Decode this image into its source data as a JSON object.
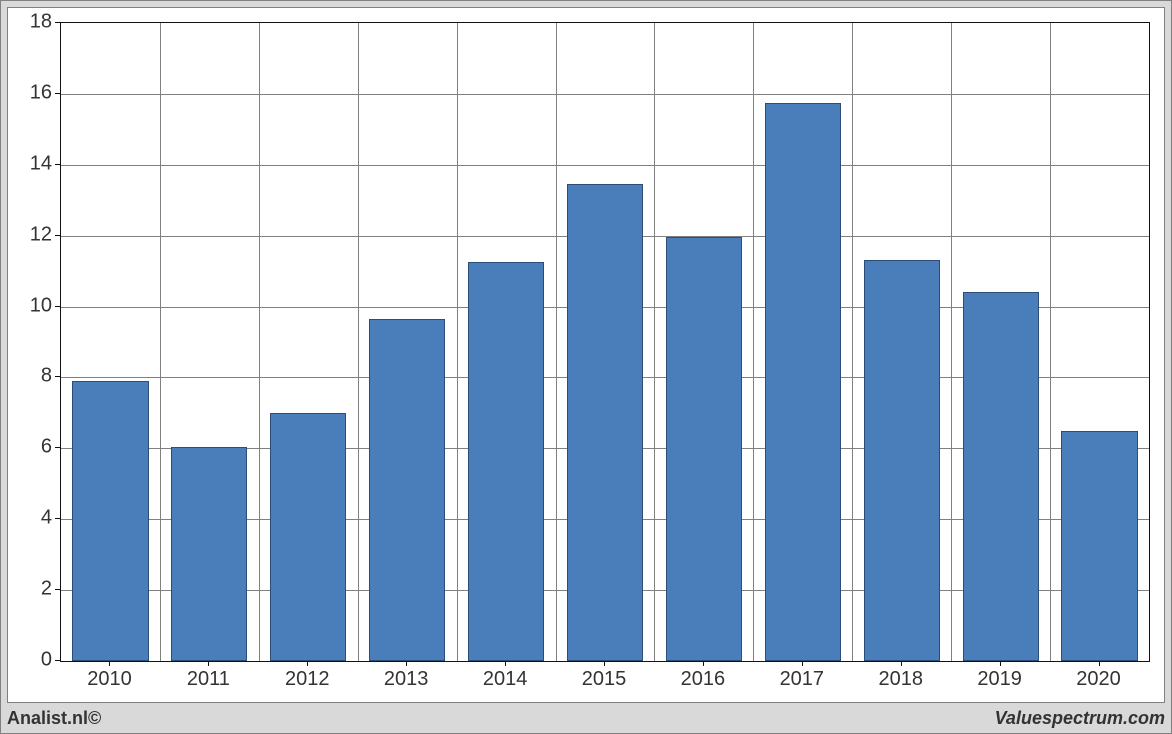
{
  "chart": {
    "type": "bar",
    "categories": [
      "2010",
      "2011",
      "2012",
      "2013",
      "2014",
      "2015",
      "2016",
      "2017",
      "2018",
      "2019",
      "2020"
    ],
    "values": [
      7.9,
      6.05,
      7.0,
      9.65,
      11.25,
      13.45,
      11.95,
      15.75,
      11.3,
      10.4,
      6.5
    ],
    "bar_color": "#4a7ebb",
    "bar_border_color": "#2c4d75",
    "bar_border_width": 1,
    "bar_width_ratio": 0.77,
    "background_color": "#ffffff",
    "plot_border_color": "#111111",
    "grid_color": "#808080",
    "page_background": "#d9d9d9",
    "ylim": [
      0,
      18
    ],
    "yticks": [
      0,
      2,
      4,
      6,
      8,
      10,
      12,
      14,
      16,
      18
    ],
    "tick_font_size": 20,
    "tick_color": "#333333",
    "tick_mark_length": 5
  },
  "footer": {
    "left": "Analist.nl©",
    "right": "Valuespectrum.com",
    "font_size": 18,
    "color": "#333333"
  }
}
